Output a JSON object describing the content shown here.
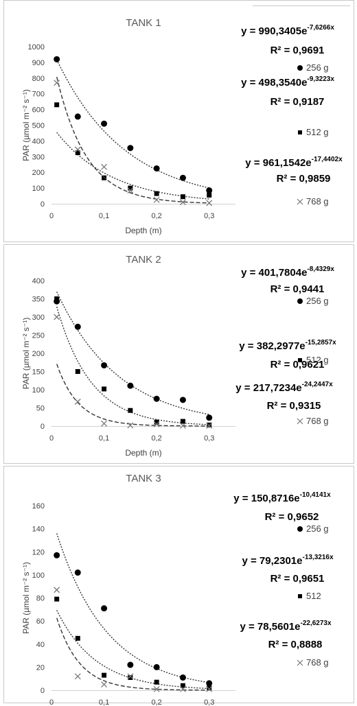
{
  "chart_data": [
    {
      "type": "scatter",
      "title": "TANK 1",
      "xlabel": "Depth (m)",
      "ylabel": "PAR (µmol m⁻² s⁻¹)",
      "xlim": [
        0,
        0.35
      ],
      "ylim": [
        0,
        1000
      ],
      "x_ticks": [
        "0",
        "0,1",
        "0,2",
        "0,3"
      ],
      "y_ticks": [
        "0",
        "100",
        "200",
        "300",
        "400",
        "500",
        "600",
        "700",
        "800",
        "900",
        "1000"
      ],
      "series": [
        {
          "name": "256 g",
          "marker": "circle",
          "x": [
            0.01,
            0.05,
            0.1,
            0.15,
            0.2,
            0.25,
            0.3
          ],
          "y": [
            920,
            555,
            510,
            355,
            225,
            165,
            85
          ],
          "fit": {
            "a": 990.3405,
            "b": -7.6266,
            "style": "dot"
          },
          "equation_main": "y = 990,3405e",
          "equation_exp": "-7,6266x",
          "r2_label": "R² = 0,9691"
        },
        {
          "name": "512 g",
          "marker": "square",
          "x": [
            0.01,
            0.05,
            0.1,
            0.15,
            0.2,
            0.25,
            0.3
          ],
          "y": [
            630,
            325,
            165,
            100,
            65,
            45,
            55
          ],
          "fit": {
            "a": 498.354,
            "b": -9.3223,
            "style": "dot"
          },
          "equation_main": "y = 498,3540e",
          "equation_exp": "-9,3223x",
          "r2_label": "R² = 0,9187"
        },
        {
          "name": "768 g",
          "marker": "cross",
          "x": [
            0.01,
            0.05,
            0.1,
            0.15,
            0.2,
            0.25,
            0.3
          ],
          "y": [
            770,
            345,
            235,
            85,
            25,
            10,
            5
          ],
          "fit": {
            "a": 961.1542,
            "b": -17.4402,
            "style": "dash"
          },
          "equation_main": "y = 961,1542e",
          "equation_exp": "-17,4402x",
          "r2_label": "R² = 0,9859"
        }
      ]
    },
    {
      "type": "scatter",
      "title": "TANK 2",
      "xlabel": "Depth (m)",
      "ylabel": "PAR (µmol m⁻² s⁻¹)",
      "xlim": [
        0,
        0.35
      ],
      "ylim": [
        0,
        400
      ],
      "x_ticks": [
        "0",
        "0,1",
        "0,2",
        "0,3"
      ],
      "y_ticks": [
        "0",
        "50",
        "100",
        "150",
        "200",
        "250",
        "300",
        "350",
        "400"
      ],
      "series": [
        {
          "name": "256 g",
          "marker": "circle",
          "x": [
            0.01,
            0.05,
            0.1,
            0.15,
            0.2,
            0.25,
            0.3
          ],
          "y": [
            343,
            273,
            167,
            111,
            75,
            72,
            23
          ],
          "fit": {
            "a": 401.7804,
            "b": -8.4329,
            "style": "dot"
          },
          "equation_main": "y = 401,7804e",
          "equation_exp": "-8,4329x",
          "r2_label": "R² = 0,9441"
        },
        {
          "name": "512 g",
          "marker": "square",
          "x": [
            0.01,
            0.05,
            0.1,
            0.15,
            0.2,
            0.25,
            0.3
          ],
          "y": [
            350,
            150,
            102,
            43,
            11,
            13,
            3
          ],
          "fit": {
            "a": 382.2977,
            "b": -15.2857,
            "style": "dot"
          },
          "equation_main": "y = 382,2977e",
          "equation_exp": "-15,2857x",
          "r2_label": "R² = 0,9621"
        },
        {
          "name": "768 g",
          "marker": "cross",
          "x": [
            0.01,
            0.05,
            0.1,
            0.15,
            0.2,
            0.25,
            0.3
          ],
          "y": [
            300,
            67,
            7,
            2,
            5,
            1,
            1
          ],
          "fit": {
            "a": 217.7234,
            "b": -24.2447,
            "style": "dash"
          },
          "equation_main": "y = 217,7234e",
          "equation_exp": "-24,2447x",
          "r2_label": "R² = 0,9315"
        }
      ]
    },
    {
      "type": "scatter",
      "title": "TANK 3",
      "xlabel": "Depth (m)",
      "ylabel": "PAR (µmol m⁻² s⁻¹)",
      "xlim": [
        0,
        0.35
      ],
      "ylim": [
        0,
        160
      ],
      "x_ticks": [
        "0",
        "0,1",
        "0,2",
        "0,3"
      ],
      "y_ticks": [
        "0",
        "20",
        "40",
        "60",
        "80",
        "100",
        "120",
        "140",
        "160"
      ],
      "series": [
        {
          "name": "256 g",
          "marker": "circle",
          "x": [
            0.01,
            0.05,
            0.1,
            0.15,
            0.2,
            0.25,
            0.3
          ],
          "y": [
            117,
            102,
            71,
            22,
            20,
            11,
            6
          ],
          "fit": {
            "a": 150.8716,
            "b": -10.4141,
            "style": "dot"
          },
          "equation_main": "y = 150,8716e",
          "equation_exp": "-10,4141x",
          "r2_label": "R² = 0,9652"
        },
        {
          "name": "512",
          "marker": "square",
          "x": [
            0.01,
            0.05,
            0.1,
            0.15,
            0.2,
            0.25,
            0.3
          ],
          "y": [
            79,
            45,
            13,
            11,
            7,
            4,
            2
          ],
          "fit": {
            "a": 79.2301,
            "b": -13.3216,
            "style": "dot"
          },
          "equation_main": "y = 79,2301e",
          "equation_exp": "-13,3216x",
          "r2_label": "R² = 0,9651"
        },
        {
          "name": "768 g",
          "marker": "cross",
          "x": [
            0.01,
            0.05,
            0.1,
            0.15,
            0.2,
            0.25,
            0.3
          ],
          "y": [
            87,
            12,
            5,
            12,
            1,
            1,
            1
          ],
          "fit": {
            "a": 78.5601,
            "b": -22.6273,
            "style": "dash"
          },
          "equation_main": "y = 78,5601e",
          "equation_exp": "-22,6273x",
          "r2_label": "R² = 0,8888"
        }
      ]
    }
  ]
}
